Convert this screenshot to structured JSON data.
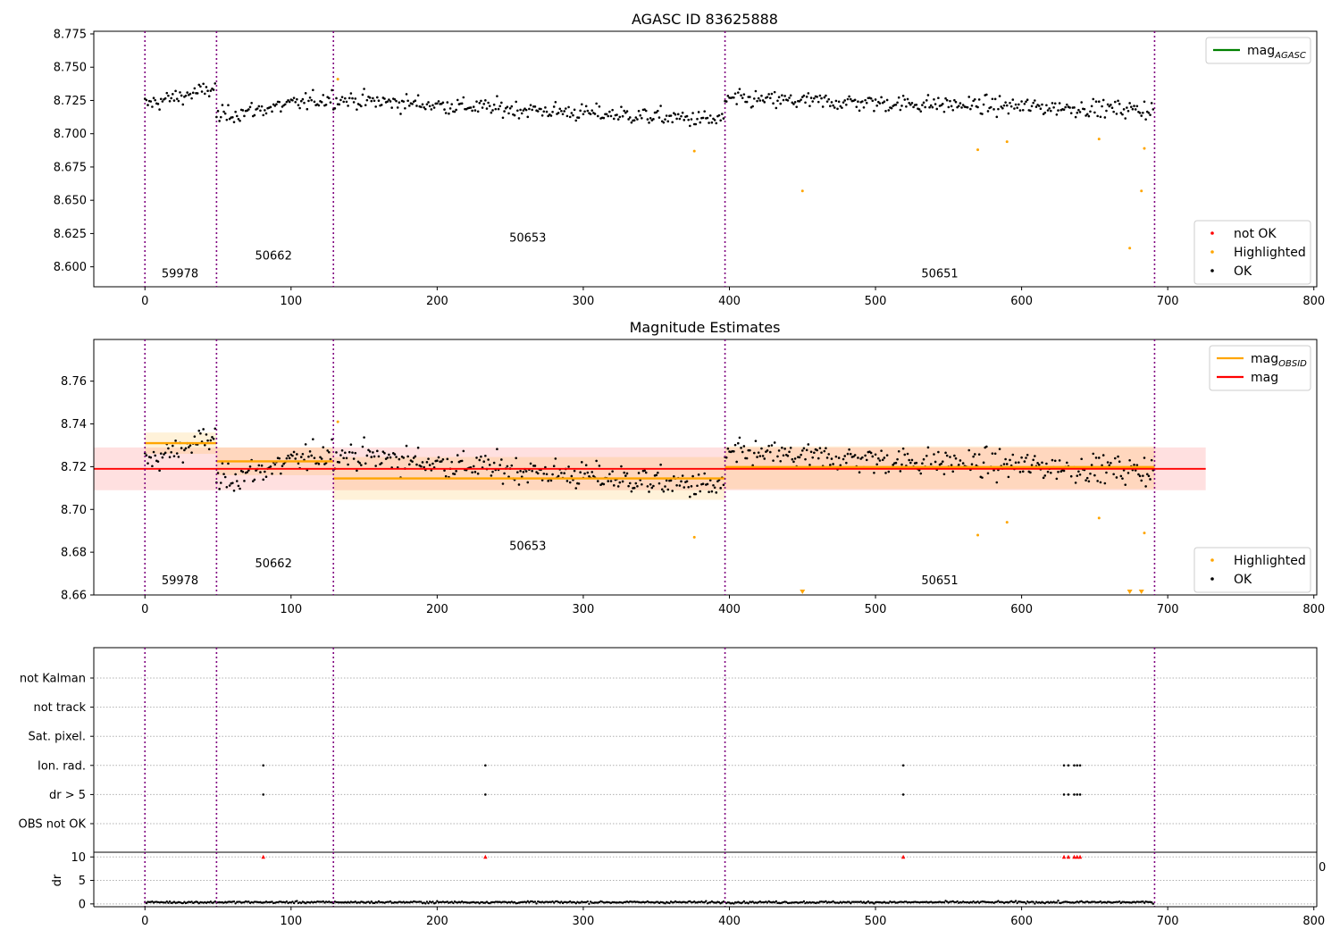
{
  "figure": {
    "panel1_title": "AGASC ID 83625888",
    "panel2_title": "Magnitude Estimates"
  },
  "chart_data": [
    {
      "type": "scatter",
      "title": "AGASC ID 83625888",
      "xlim": [
        -35,
        802
      ],
      "ylim": [
        8.585,
        8.777
      ],
      "x_ticks": [
        0,
        100,
        200,
        300,
        400,
        500,
        600,
        700,
        800
      ],
      "y_ticks": [
        "8.600",
        "8.625",
        "8.650",
        "8.675",
        "8.700",
        "8.725",
        "8.750",
        "8.775"
      ],
      "obsid_boundaries": [
        0,
        49,
        129,
        397,
        691
      ],
      "obsid_labels": [
        {
          "text": "59978",
          "x": 24,
          "y": 8.592
        },
        {
          "text": "50662",
          "x": 88,
          "y": 8.6055
        },
        {
          "text": "50653",
          "x": 262,
          "y": 8.619
        },
        {
          "text": "50651",
          "x": 544,
          "y": 8.592
        }
      ],
      "segments": [
        {
          "x0": 0,
          "x1": 49,
          "level": 8.728,
          "trend": 0.012,
          "noise": 0.0055
        },
        {
          "x0": 49,
          "x1": 129,
          "level": 8.72,
          "trend": 0.014,
          "noise": 0.0055
        },
        {
          "x0": 129,
          "x1": 397,
          "level": 8.718,
          "trend": -0.016,
          "noise": 0.0055
        },
        {
          "x0": 397,
          "x1": 691,
          "level": 8.722,
          "trend": -0.008,
          "noise": 0.0055
        }
      ],
      "highlighted": [
        [
          132,
          8.741
        ],
        [
          376,
          8.687
        ],
        [
          450,
          8.657
        ],
        [
          570,
          8.688
        ],
        [
          590,
          8.694
        ],
        [
          653,
          8.696
        ],
        [
          674,
          8.614
        ],
        [
          682,
          8.657
        ],
        [
          684,
          8.689
        ]
      ],
      "legend_top": {
        "entries": [
          {
            "label": "mag",
            "sub": "AGASC",
            "color": "#008000"
          }
        ],
        "placement": "upper right"
      },
      "legend_bottom": {
        "entries": [
          {
            "label": "not OK",
            "color": "#ff0000"
          },
          {
            "label": "Highlighted",
            "color": "#ffa500"
          },
          {
            "label": "OK",
            "color": "#000000"
          }
        ],
        "placement": "lower right"
      }
    },
    {
      "type": "scatter",
      "title": "Magnitude Estimates",
      "xlim": [
        -35,
        802
      ],
      "ylim": [
        8.66,
        8.7795
      ],
      "x_ticks": [
        0,
        100,
        200,
        300,
        400,
        500,
        600,
        700,
        800
      ],
      "y_ticks": [
        "8.66",
        "8.68",
        "8.70",
        "8.72",
        "8.74",
        "8.76"
      ],
      "obsid_labels": [
        {
          "text": "59978",
          "x": 24,
          "y": 8.665
        },
        {
          "text": "50662",
          "x": 88,
          "y": 8.673
        },
        {
          "text": "50653",
          "x": 262,
          "y": 8.681
        },
        {
          "text": "50651",
          "x": 544,
          "y": 8.665
        }
      ],
      "mag": {
        "value": 8.719,
        "band": [
          8.709,
          8.729
        ],
        "x0": -35,
        "x1": 726,
        "color": "#ff0000"
      },
      "mag_obsid": [
        {
          "x0": 0,
          "x1": 49,
          "value": 8.731,
          "band": [
            8.726,
            8.736
          ]
        },
        {
          "x0": 49,
          "x1": 129,
          "value": 8.7225,
          "band": [
            8.716,
            8.729
          ]
        },
        {
          "x0": 129,
          "x1": 397,
          "value": 8.7145,
          "band": [
            8.7045,
            8.7245
          ]
        },
        {
          "x0": 397,
          "x1": 691,
          "value": 8.7198,
          "band": [
            8.7095,
            8.7295
          ]
        }
      ],
      "out_of_range_markers": [
        450,
        674,
        682
      ],
      "legend_top": {
        "entries": [
          {
            "label": "mag",
            "sub": "OBSID",
            "color": "#ffa500"
          },
          {
            "label": "mag",
            "sub": "",
            "color": "#ff0000"
          }
        ],
        "placement": "upper right"
      },
      "legend_bottom": {
        "entries": [
          {
            "label": "Highlighted",
            "color": "#ffa500"
          },
          {
            "label": "OK",
            "color": "#000000"
          }
        ],
        "placement": "lower right"
      }
    },
    {
      "type": "scatter",
      "title": "",
      "xlim": [
        -35,
        802
      ],
      "flag_rows": [
        "not Kalman",
        "not track",
        "Sat. pixel.",
        "Ion. rad.",
        "dr > 5",
        "OBS not OK"
      ],
      "flags": {
        "Ion. rad.": [
          81,
          233,
          519,
          629,
          632,
          636,
          638,
          640
        ],
        "dr > 5": [
          81,
          233,
          519,
          629,
          632,
          636,
          638,
          640
        ]
      },
      "dr": {
        "ylabel": "dr",
        "ylim": [
          -0.6,
          11
        ],
        "y_ticks": [
          "0",
          "5",
          "10"
        ],
        "clipped_markers": [
          81,
          233,
          519,
          629,
          632,
          636,
          638,
          640
        ],
        "clip_value": 10
      },
      "stray_label": "0"
    }
  ]
}
